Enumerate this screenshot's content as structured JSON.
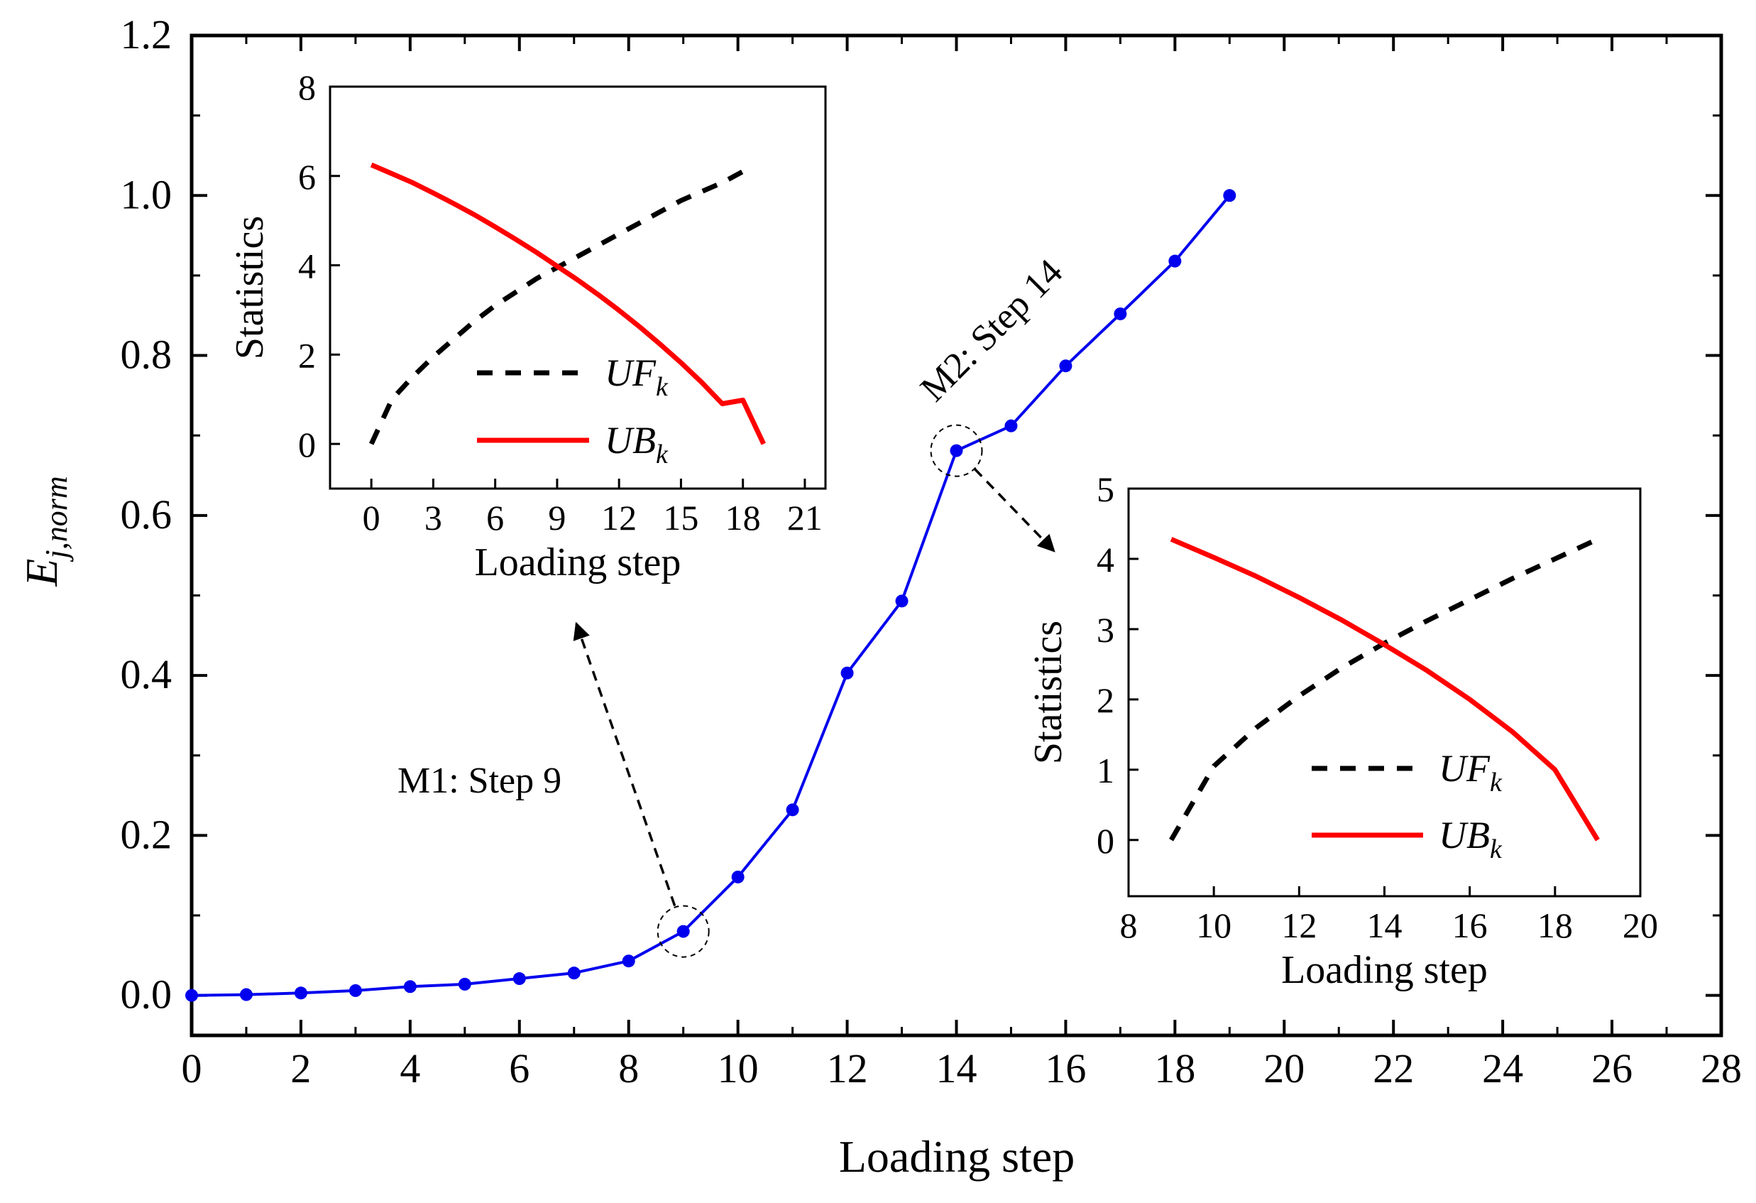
{
  "chart_data": [
    {
      "id": "main",
      "type": "line",
      "xlabel": "Loading step",
      "ylabel_main": "E",
      "ylabel_sub": "j,norm",
      "xlim": [
        0,
        28
      ],
      "ylim": [
        -0.05,
        1.2
      ],
      "xticks": [
        0,
        2,
        4,
        6,
        8,
        10,
        12,
        14,
        16,
        18,
        20,
        22,
        24,
        26,
        28
      ],
      "yticks": [
        0.0,
        0.2,
        0.4,
        0.6,
        0.8,
        1.0,
        1.2
      ],
      "ytick_labels": [
        "0.0",
        "0.2",
        "0.4",
        "0.6",
        "0.8",
        "1.0",
        "1.2"
      ],
      "series": [
        {
          "name": "E_j,norm",
          "color": "#0000ee",
          "x": [
            0,
            1,
            2,
            3,
            4,
            5,
            6,
            7,
            8,
            9,
            10,
            11,
            12,
            13,
            14,
            15,
            16,
            17,
            18,
            19
          ],
          "values": [
            0.0,
            0.001,
            0.003,
            0.006,
            0.011,
            0.014,
            0.021,
            0.028,
            0.043,
            0.08,
            0.148,
            0.232,
            0.403,
            0.493,
            0.681,
            0.712,
            0.787,
            0.852,
            0.918,
            1.0
          ]
        }
      ],
      "annotations": [
        {
          "text": "M1: Step 9",
          "x": 9,
          "y": 0.08
        },
        {
          "text": "M2: Step 14",
          "x": 14,
          "y": 0.681
        }
      ]
    },
    {
      "id": "inset1",
      "type": "line",
      "xlabel": "Loading step",
      "ylabel": "Statistics",
      "xlim": [
        -2,
        22
      ],
      "ylim": [
        -1,
        8
      ],
      "xticks": [
        0,
        3,
        6,
        9,
        12,
        15,
        18,
        21
      ],
      "yticks": [
        0,
        2,
        4,
        6,
        8
      ],
      "series": [
        {
          "name": "UF",
          "sub": "k",
          "style": "dashed",
          "color": "#000000",
          "x": [
            0,
            1,
            2,
            3,
            4,
            5,
            6,
            7,
            8,
            9,
            10,
            11,
            12,
            13,
            14,
            15,
            16,
            17,
            18
          ],
          "values": [
            0.0,
            1.0,
            1.5,
            1.95,
            2.35,
            2.75,
            3.1,
            3.4,
            3.7,
            3.95,
            4.2,
            4.45,
            4.7,
            4.95,
            5.2,
            5.45,
            5.65,
            5.85,
            6.1
          ]
        },
        {
          "name": "UB",
          "sub": "k",
          "style": "solid",
          "color": "#ff0000",
          "x": [
            0,
            1,
            2,
            3,
            4,
            5,
            6,
            7,
            8,
            9,
            10,
            11,
            12,
            13,
            14,
            15,
            16,
            17,
            18,
            19
          ],
          "values": [
            6.25,
            6.05,
            5.85,
            5.62,
            5.38,
            5.13,
            4.86,
            4.58,
            4.29,
            3.98,
            3.67,
            3.34,
            2.99,
            2.62,
            2.23,
            1.82,
            1.38,
            0.9,
            0.98,
            0.0
          ]
        }
      ]
    },
    {
      "id": "inset2",
      "type": "line",
      "xlabel": "Loading step",
      "ylabel": "Statistics",
      "xlim": [
        8,
        20
      ],
      "ylim": [
        -0.8,
        5
      ],
      "xticks": [
        8,
        10,
        12,
        14,
        16,
        18,
        20
      ],
      "yticks": [
        0,
        1,
        2,
        3,
        4,
        5
      ],
      "series": [
        {
          "name": "UF",
          "sub": "k",
          "style": "dashed",
          "color": "#000000",
          "x": [
            9,
            10,
            11,
            12,
            13,
            14,
            15,
            16,
            17,
            18,
            19
          ],
          "values": [
            0.0,
            1.05,
            1.6,
            2.05,
            2.45,
            2.8,
            3.12,
            3.42,
            3.72,
            4.0,
            4.28
          ]
        },
        {
          "name": "UB",
          "sub": "k",
          "style": "solid",
          "color": "#ff0000",
          "x": [
            9,
            10,
            11,
            12,
            13,
            14,
            15,
            16,
            17,
            18,
            19
          ],
          "values": [
            4.28,
            4.02,
            3.75,
            3.45,
            3.13,
            2.78,
            2.41,
            2.0,
            1.54,
            1.0,
            0.0
          ]
        }
      ]
    }
  ]
}
